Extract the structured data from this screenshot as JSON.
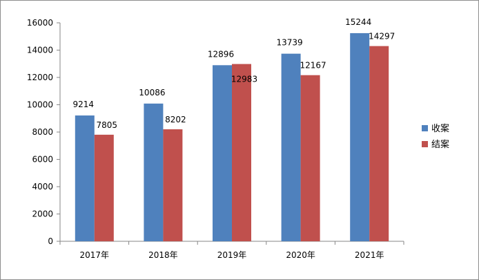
{
  "chart_data": {
    "type": "bar",
    "categories": [
      "2017年",
      "2018年",
      "2019年",
      "2020年",
      "2021年"
    ],
    "series": [
      {
        "name": "收案",
        "values": [
          9214,
          10086,
          12896,
          13739,
          15244
        ],
        "color": "#4f81bd"
      },
      {
        "name": "结案",
        "values": [
          7805,
          8202,
          12983,
          12167,
          14297
        ],
        "color": "#c0504d"
      }
    ],
    "ylim": [
      0,
      16000
    ],
    "yticks": [
      0,
      2000,
      4000,
      6000,
      8000,
      10000,
      12000,
      14000,
      16000
    ],
    "grid": false,
    "legend": "right",
    "data_labels": true
  }
}
